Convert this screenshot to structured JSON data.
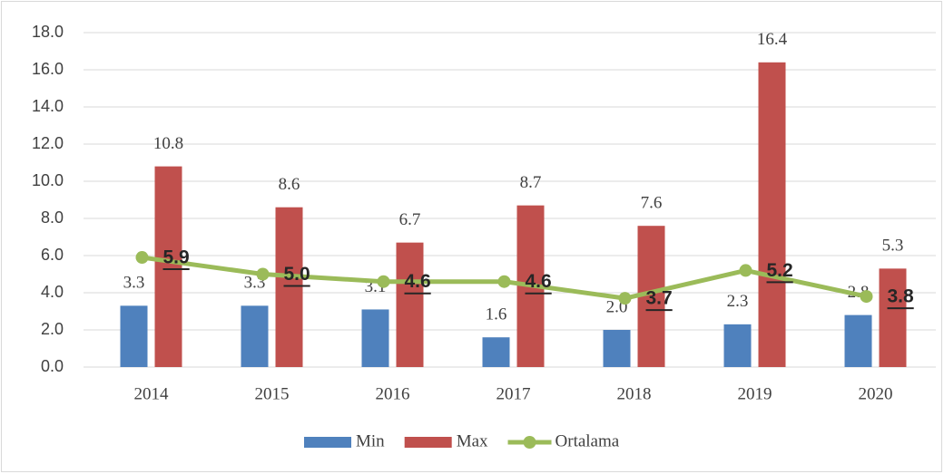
{
  "chart_data": {
    "type": "bar_line",
    "categories": [
      "2014",
      "2015",
      "2016",
      "2017",
      "2018",
      "2019",
      "2020"
    ],
    "series": [
      {
        "name": "Min",
        "color": "#4f81bd",
        "kind": "bar",
        "values": [
          3.3,
          3.3,
          3.1,
          1.6,
          2.0,
          2.3,
          2.8
        ],
        "value_labels": [
          "3.3",
          "3.3",
          "3.1",
          "1.6",
          "2.0",
          "2.3",
          "2.8"
        ]
      },
      {
        "name": "Max",
        "color": "#c0504d",
        "kind": "bar",
        "values": [
          10.8,
          8.6,
          6.7,
          8.7,
          7.6,
          16.4,
          5.3
        ],
        "value_labels": [
          "10.8",
          "8.6",
          "6.7",
          "8.7",
          "7.6",
          "16.4",
          "5.3"
        ]
      },
      {
        "name": "Ortalama",
        "color": "#9bbb59",
        "kind": "line",
        "values": [
          5.9,
          5.0,
          4.6,
          4.6,
          3.7,
          5.2,
          3.8
        ],
        "value_labels": [
          "5.9",
          "5.0",
          "4.6",
          "4.6",
          "3.7",
          "5.2",
          "3.8"
        ]
      }
    ],
    "ylim": [
      0,
      18
    ],
    "yticks": [
      {
        "value": 0,
        "label": "0.0"
      },
      {
        "value": 2,
        "label": "2.0"
      },
      {
        "value": 4,
        "label": "4.0"
      },
      {
        "value": 6,
        "label": "6.0"
      },
      {
        "value": 8,
        "label": "8.0"
      },
      {
        "value": 10,
        "label": "10.0"
      },
      {
        "value": 12,
        "label": "12.0"
      },
      {
        "value": 14,
        "label": "14.0"
      },
      {
        "value": 16,
        "label": "16.0"
      },
      {
        "value": 18,
        "label": "18.0"
      }
    ],
    "grid": true,
    "legend": "bottom"
  }
}
